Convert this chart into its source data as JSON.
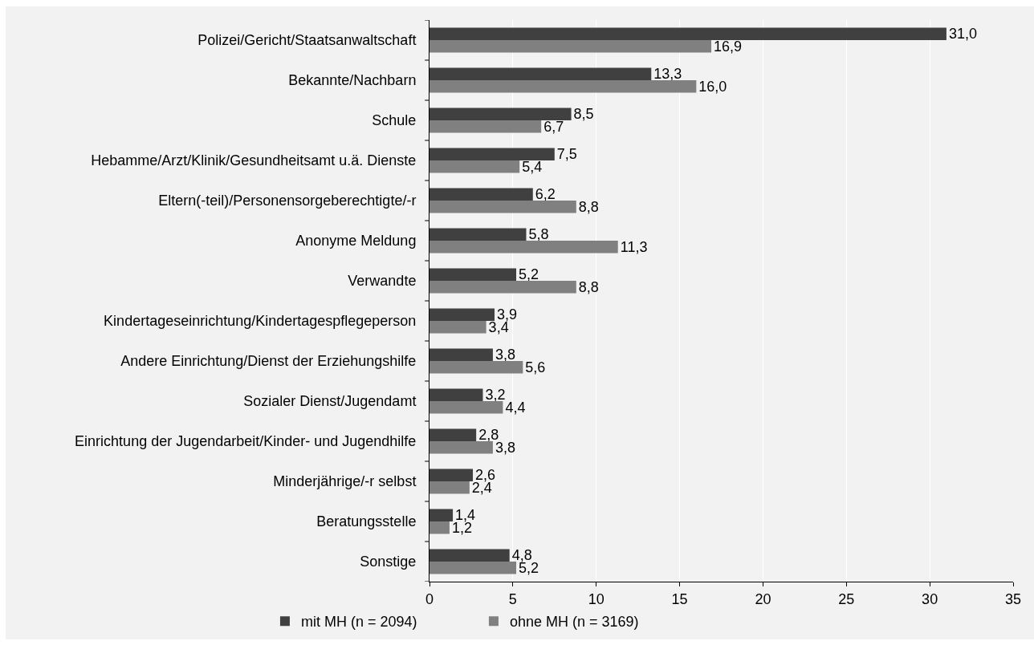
{
  "chart_data": {
    "type": "bar",
    "orientation": "horizontal",
    "categories": [
      "Polizei/Gericht/Staatsanwaltschaft",
      "Bekannte/Nachbarn",
      "Schule",
      "Hebamme/Arzt/Klinik/Gesundheitsamt u.ä. Dienste",
      "Eltern(-teil)/Personensorgeberechtigte/-r",
      "Anonyme Meldung",
      "Verwandte",
      "Kindertageseinrichtung/Kindertagespflegeperson",
      "Andere Einrichtung/Dienst der Erziehungshilfe",
      "Sozialer Dienst/Jugendamt",
      "Einrichtung der Jugendarbeit/Kinder- und Jugendhilfe",
      "Minderjährige/-r selbst",
      "Beratungsstelle",
      "Sonstige"
    ],
    "series": [
      {
        "name": "mit MH (n = 2094)",
        "color": "#404040",
        "values": [
          31.0,
          13.3,
          8.5,
          7.5,
          6.2,
          5.8,
          5.2,
          3.9,
          3.8,
          3.2,
          2.8,
          2.6,
          1.4,
          4.8
        ],
        "value_labels": [
          "31,0",
          "13,3",
          "8,5",
          "7,5",
          "6,2",
          "5,8",
          "5,2",
          "3,9",
          "3,8",
          "3,2",
          "2,8",
          "2,6",
          "1,4",
          "4,8"
        ]
      },
      {
        "name": "ohne MH (n = 3169)",
        "color": "#808080",
        "values": [
          16.9,
          16.0,
          6.7,
          5.4,
          8.8,
          11.3,
          8.8,
          3.4,
          5.6,
          4.4,
          3.8,
          2.4,
          1.2,
          5.2
        ],
        "value_labels": [
          "16,9",
          "16,0",
          "6,7",
          "5,4",
          "8,8",
          "11,3",
          "8,8",
          "3,4",
          "5,6",
          "4,4",
          "3,8",
          "2,4",
          "1,2",
          "5,2"
        ]
      }
    ],
    "xlim": [
      0,
      35
    ],
    "xticks": [
      0,
      5,
      10,
      15,
      20,
      25,
      30,
      35
    ],
    "grid": "x",
    "legend": "bottom"
  }
}
